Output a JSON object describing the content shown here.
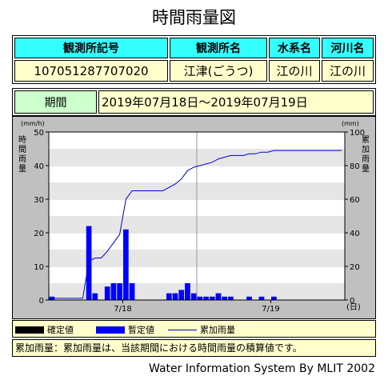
{
  "page": {
    "title": "時間雨量図"
  },
  "station": {
    "headers": [
      "観測所記号",
      "観測所名",
      "水系名",
      "河川名"
    ],
    "values": [
      "107051287707020",
      "江津(ごうつ)",
      "江の川",
      "江の川"
    ]
  },
  "period": {
    "label": "期間",
    "value": "2019年07月18日～2019年07月19日"
  },
  "legend": {
    "confirmed": "確定値",
    "provisional": "暫定値",
    "cumulative": "累加雨量"
  },
  "note": "累加雨量：累加雨量は、当該期間における時間雨量の積算値です。",
  "footer": "Water Information System By MLIT 2002",
  "colors": {
    "bar": "#0000ff",
    "line": "#0000cc",
    "header": "#33ffff",
    "value_bg": "#ffffcc",
    "period_label": "#ccffcc",
    "band": "#e6e6e6"
  },
  "chart_data": {
    "type": "bar",
    "left_axis": {
      "unit": "(mm/h)",
      "label": "時間雨量",
      "ylim": [
        0,
        50
      ],
      "ticks": [
        0,
        10,
        20,
        30,
        40,
        50
      ]
    },
    "right_axis": {
      "unit": "(mm)",
      "label": "累加雨量",
      "ylim": [
        0,
        100
      ],
      "ticks": [
        0,
        20,
        40,
        60,
        80,
        100
      ]
    },
    "x_labels": [
      "7/18",
      "7/19"
    ],
    "x_unit": "(日)",
    "hours": [
      0,
      1,
      2,
      3,
      4,
      5,
      6,
      7,
      8,
      9,
      10,
      11,
      12,
      13,
      14,
      15,
      16,
      17,
      18,
      19,
      20,
      21,
      22,
      23,
      24,
      25,
      26,
      27,
      28,
      29,
      30,
      31,
      32,
      33,
      34,
      35,
      36,
      37,
      38,
      39,
      40,
      41,
      42,
      43,
      44,
      45,
      46,
      47
    ],
    "hourly_rain": [
      1,
      0,
      0,
      0,
      0,
      0,
      22,
      2,
      0,
      4,
      5,
      5,
      21,
      5,
      0,
      0,
      0,
      0,
      0,
      2,
      2,
      3,
      5,
      2,
      1,
      1,
      1,
      2,
      1,
      1,
      0,
      0,
      1,
      0,
      1,
      0,
      1,
      0,
      0,
      0,
      0,
      0,
      0,
      0,
      0,
      0,
      0,
      0
    ],
    "cumulative": [
      1,
      1,
      1,
      1,
      1,
      1,
      23,
      25,
      25,
      29,
      34,
      39,
      60,
      65,
      65,
      65,
      65,
      65,
      65,
      67,
      69,
      72,
      77,
      79,
      80,
      81,
      82,
      84,
      85,
      86,
      86,
      86,
      87,
      87,
      88,
      88,
      89,
      89,
      89,
      89,
      89,
      89,
      89,
      89,
      89,
      89,
      89,
      89
    ]
  }
}
